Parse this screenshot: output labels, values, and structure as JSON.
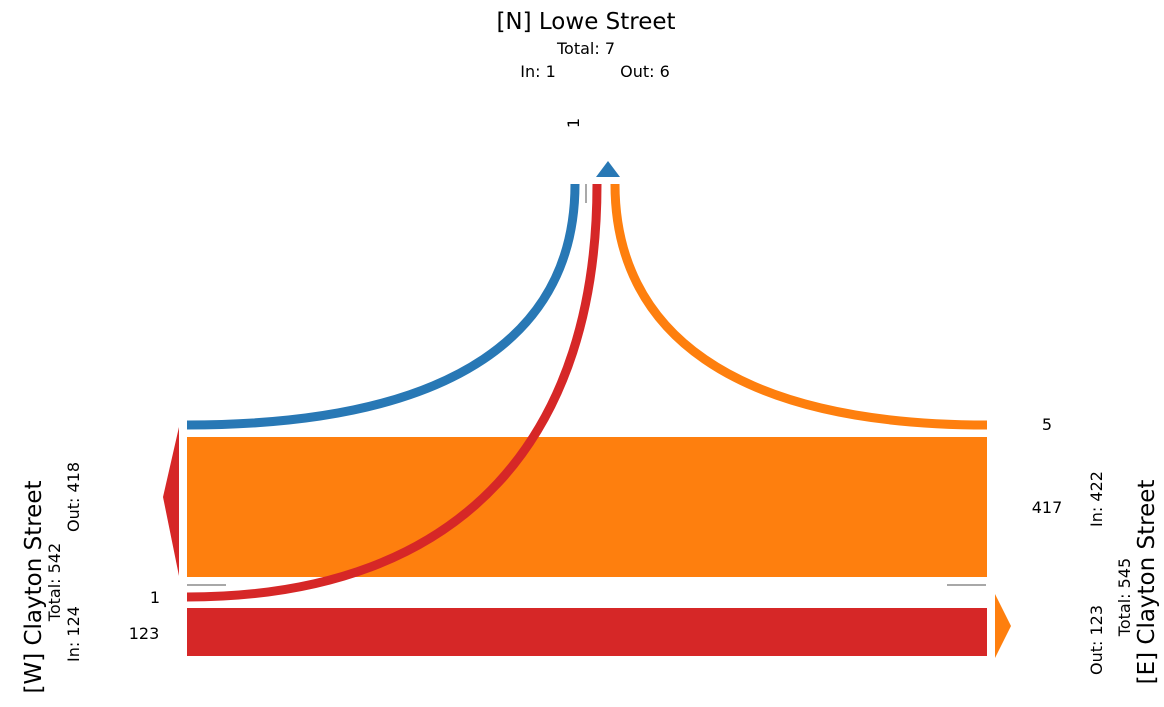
{
  "colors": {
    "blue": "#2878b5",
    "orange": "#fe7f0e",
    "red": "#d62727",
    "gray": "#8c8c8c"
  },
  "north": {
    "name": "[N] Lowe Street",
    "total": "Total: 7",
    "in": "In: 1",
    "out": "Out: 6",
    "flow_label": "1"
  },
  "west": {
    "name": "[W] Clayton Street",
    "total": "Total: 542",
    "in": "In: 124",
    "out": "Out: 418",
    "flow_label_top": "1",
    "flow_label_bottom": "123"
  },
  "east": {
    "name": "[E] Clayton Street",
    "total": "Total: 545",
    "in": "In: 422",
    "out": "Out: 123",
    "flow_label_top": "5",
    "flow_label_bottom": "417"
  },
  "chart_data": {
    "type": "flow-diagram",
    "flows": [
      {
        "from": "[W] Clayton Street",
        "to": "[N] Lowe Street",
        "value": 1,
        "color": "#d62727"
      },
      {
        "from": "[W] Clayton Street",
        "to": "[E] Clayton Street",
        "value": 123,
        "color": "#d62727"
      },
      {
        "from": "[N] Lowe Street",
        "to": "[W] Clayton Street",
        "value": 1,
        "color": "#2878b5"
      },
      {
        "from": "[E] Clayton Street",
        "to": "[N] Lowe Street",
        "value": 5,
        "color": "#fe7f0e"
      },
      {
        "from": "[E] Clayton Street",
        "to": "[W] Clayton Street",
        "value": 417,
        "color": "#fe7f0e"
      }
    ]
  }
}
